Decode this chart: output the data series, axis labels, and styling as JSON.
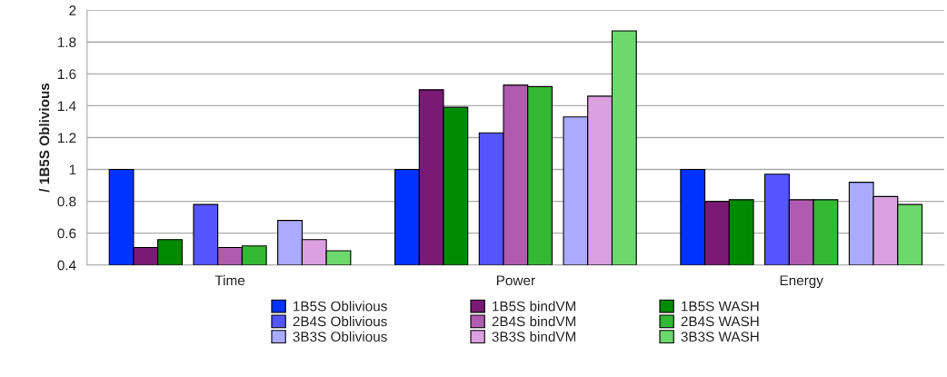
{
  "chart_data": {
    "type": "bar",
    "ylabel": "/ 1B5S Oblivious",
    "categories": [
      "Time",
      "Power",
      "Energy"
    ],
    "series": [
      {
        "name": "1B5S Oblivious",
        "color": "#0033ff",
        "values": [
          1.0,
          1.0,
          1.0
        ]
      },
      {
        "name": "1B5S bindVM",
        "color": "#7a1a75",
        "values": [
          0.51,
          1.5,
          0.8
        ]
      },
      {
        "name": "1B5S WASH",
        "color": "#008a00",
        "values": [
          0.56,
          1.39,
          0.81
        ]
      },
      {
        "name": "2B4S Oblivious",
        "color": "#5555ff",
        "values": [
          0.78,
          1.23,
          0.97
        ]
      },
      {
        "name": "2B4S bindVM",
        "color": "#b05ab0",
        "values": [
          0.51,
          1.53,
          0.81
        ]
      },
      {
        "name": "2B4S WASH",
        "color": "#33b833",
        "values": [
          0.52,
          1.52,
          0.81
        ]
      },
      {
        "name": "3B3S Oblivious",
        "color": "#aaaaff",
        "values": [
          0.68,
          1.33,
          0.92
        ]
      },
      {
        "name": "3B3S bindVM",
        "color": "#dca0e0",
        "values": [
          0.56,
          1.46,
          0.83
        ]
      },
      {
        "name": "3B3S WASH",
        "color": "#6cd96c",
        "values": [
          0.49,
          1.87,
          0.78
        ]
      }
    ],
    "ylim": [
      0.4,
      2
    ],
    "yticks": [
      0.4,
      0.6,
      0.8,
      1,
      1.2,
      1.4,
      1.6,
      1.8,
      2
    ],
    "grid": "y",
    "legend": "bottom"
  }
}
